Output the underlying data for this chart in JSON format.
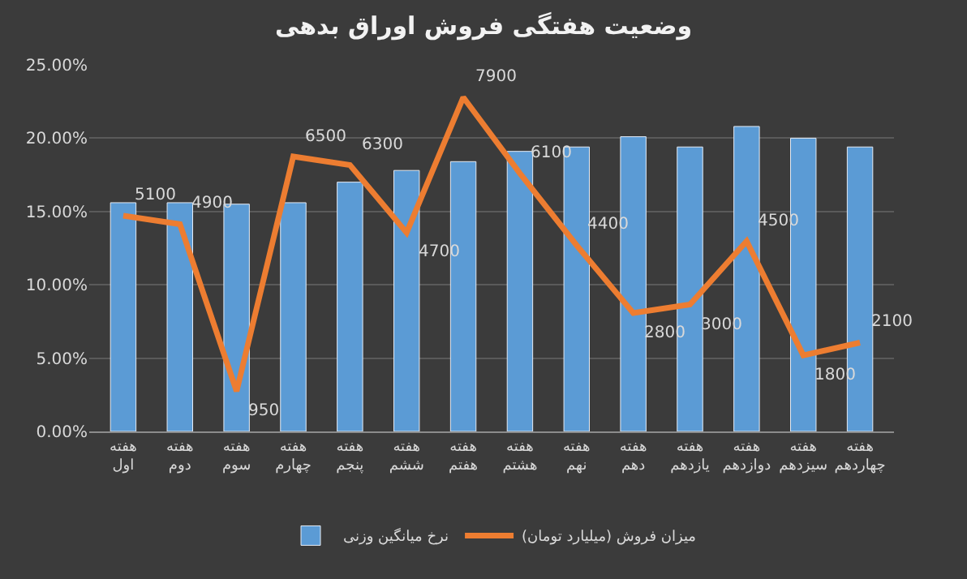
{
  "chart_data": {
    "type": "bar",
    "title": "وضعیت هفتگی فروش اوراق بدهی",
    "categories": [
      "هفته اول",
      "هفته دوم",
      "هفته سوم",
      "هفته چهارم",
      "هفته پنجم",
      "هفته ششم",
      "هفته هفتم",
      "هفته هشتم",
      "هفته نهم",
      "هفته دهم",
      "هفته یازدهم",
      "هفته دوازدهم",
      "هفته سیزدهم",
      "هفته چهاردهم"
    ],
    "series": [
      {
        "name": "نرخ میانگین وزنی",
        "color": "#5b9bd5",
        "values": [
          15.6,
          15.6,
          15.5,
          15.6,
          17.0,
          17.8,
          18.4,
          19.1,
          19.4,
          20.1,
          19.4,
          20.8,
          20.0,
          19.4
        ]
      },
      {
        "name": "میزان فروش (میلیارد تومان)",
        "type": "line",
        "axis": "y2",
        "color": "#ed7d31",
        "values": [
          5100,
          4900,
          950,
          6500,
          6300,
          4700,
          7900,
          6100,
          4400,
          2800,
          3000,
          4500,
          1800,
          2100
        ],
        "value_labels": [
          "5100",
          "4900",
          "950",
          "6500",
          "6300",
          "4700",
          "7900",
          "6100",
          "4400",
          "2800",
          "3000",
          "4500",
          "1800",
          "2100"
        ]
      }
    ],
    "ylim": [
      0,
      25
    ],
    "yticks": [
      {
        "value": 0,
        "label": "0.00%"
      },
      {
        "value": 5,
        "label": "5.00%"
      },
      {
        "value": 10,
        "label": "10.00%"
      },
      {
        "value": 15,
        "label": "15.00%"
      },
      {
        "value": 20,
        "label": "20.00%"
      },
      {
        "value": 25,
        "label": "25.00%"
      }
    ],
    "grid": "y",
    "legend": "bottom",
    "marker": "none",
    "line_style": "solid"
  }
}
